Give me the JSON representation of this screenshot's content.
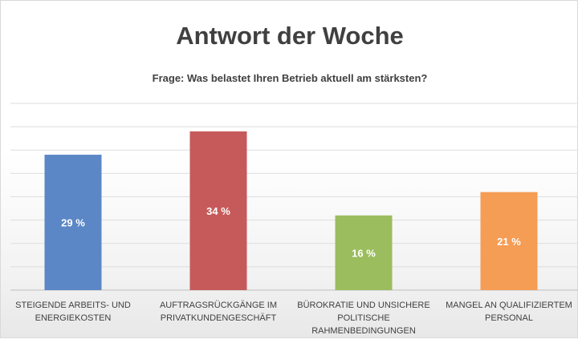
{
  "chart_data": {
    "type": "bar",
    "title": "Antwort der Woche",
    "subtitle": "Frage: Was belastet Ihren Betrieb aktuell am stärksten?",
    "categories": [
      "STEIGENDE ARBEITS- UND ENERGIEKOSTEN",
      "AUFTRAGSRÜCKGÄNGE IM PRIVATKUNDENGESCHÄFT",
      "BÜROKRATIE UND UNSICHERE POLITISCHE RAHMENBEDINGUNGEN",
      "MANGEL AN QUALIFIZIERTEM PERSONAL"
    ],
    "category_lines": [
      [
        "STEIGENDE ARBEITS- UND",
        "ENERGIEKOSTEN"
      ],
      [
        "AUFTRAGSRÜCKGÄNGE IM",
        "PRIVATKUNDENGESCHÄFT"
      ],
      [
        "BÜROKRATIE UND UNSICHERE",
        "POLITISCHE",
        "RAHMENBEDINGUNGEN"
      ],
      [
        "MANGEL AN QUALIFIZIERTEM",
        "PERSONAL"
      ]
    ],
    "values": [
      29,
      34,
      16,
      21
    ],
    "value_labels": [
      "29 %",
      "34 %",
      "16 %",
      "21 %"
    ],
    "colors": [
      "#5b87c6",
      "#c65a5a",
      "#9bbd5e",
      "#f59c55"
    ],
    "ylim": [
      0,
      40
    ],
    "grid": true,
    "legend": "none"
  }
}
